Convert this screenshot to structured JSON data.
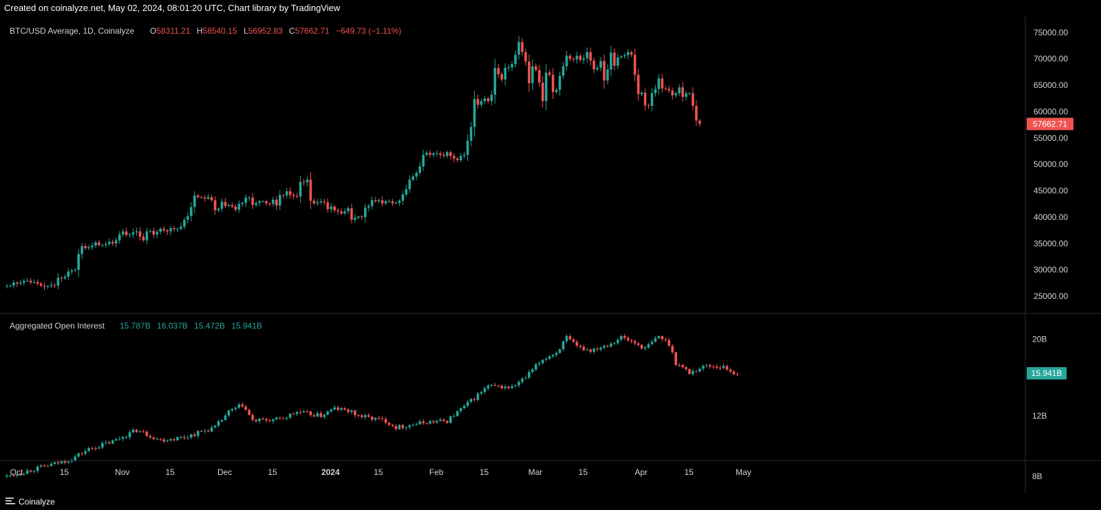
{
  "header": {
    "caption": "Created on coinalyze.net, May 02, 2024, 08:01:20 UTC, Chart library by TradingView"
  },
  "footer": {
    "brand": "Coinalyze",
    "logo_icon": "menu-lines-icon"
  },
  "colors": {
    "up": "#26a69a",
    "down": "#ef5350",
    "grid_separator": "#2a2e39",
    "axis_text": "#d1d4dc"
  },
  "chart_data": [
    {
      "type": "candlestick",
      "title": "BTC/USD Average, 1D, Coinalyze",
      "legend": {
        "open_label": "O",
        "open": "58311.21",
        "high_label": "H",
        "high": "58540.15",
        "low_label": "L",
        "low": "56952.83",
        "close_label": "C",
        "close": "57662.71",
        "change": "−649.73 (−1.11%)"
      },
      "last_value_label": "57662.71",
      "yticks": [
        "75000.00",
        "70000.00",
        "65000.00",
        "60000.00",
        "55000.00",
        "50000.00",
        "45000.00",
        "40000.00",
        "35000.00",
        "30000.00",
        "25000.00"
      ],
      "ylim": [
        22000,
        77000
      ],
      "x_start": "2023-10-01",
      "x_end": "2024-05-02",
      "closes": [
        26967,
        27000,
        27600,
        27400,
        27600,
        27900,
        27950,
        27600,
        27700,
        27400,
        27000,
        26800,
        26900,
        27100,
        27000,
        28500,
        28400,
        28700,
        29700,
        29900,
        30000,
        33000,
        34500,
        34100,
        34300,
        34600,
        35200,
        34700,
        34700,
        34900,
        35300,
        35000,
        35600,
        36700,
        37300,
        36600,
        36700,
        37100,
        37300,
        36300,
        35600,
        37300,
        37400,
        36700,
        37200,
        37800,
        37500,
        37300,
        37900,
        37700,
        37800,
        38200,
        39500,
        40200,
        41900,
        44100,
        43800,
        43700,
        43500,
        43800,
        43200,
        41300,
        41600,
        42900,
        42100,
        42300,
        42000,
        41400,
        42500,
        42700,
        43700,
        43700,
        42300,
        42700,
        43000,
        43000,
        42600,
        42500,
        43300,
        42200,
        44200,
        44100,
        44900,
        44200,
        44000,
        43900,
        46700,
        46600,
        47100,
        43100,
        42600,
        42800,
        43000,
        42800,
        41500,
        42000,
        41300,
        41100,
        40700,
        41100,
        41700,
        39500,
        39900,
        40100,
        40000,
        41800,
        42100,
        43200,
        43000,
        43200,
        42600,
        43000,
        43000,
        42600,
        42700,
        43100,
        44300,
        45300,
        47100,
        47700,
        48400,
        49600,
        51800,
        52200,
        51800,
        52100,
        52100,
        51800,
        51600,
        52300,
        51600,
        51100,
        50800,
        51600,
        51800,
        54500,
        57100,
        62400,
        61300,
        62000,
        62500,
        62000,
        63200,
        68300,
        67100,
        66100,
        68300,
        68400,
        69000,
        70800,
        73200,
        71300,
        69500,
        65400,
        68600,
        67900,
        65500,
        62000,
        67400,
        67000,
        63700,
        64100,
        66800,
        68600,
        70600,
        70000,
        69900,
        70600,
        69800,
        70100,
        71300,
        69700,
        68000,
        68300,
        69600,
        65900,
        68000,
        71200,
        68700,
        70300,
        70500,
        70700,
        71300,
        70800,
        67000,
        63300,
        63600,
        61200,
        61100,
        63500,
        64300,
        66300,
        64400,
        64300,
        64000,
        63100,
        63500,
        64600,
        62800,
        63500,
        63500,
        61100,
        58300,
        57663
      ]
    },
    {
      "type": "candlestick",
      "title": "Aggregated Open Interest",
      "legend": {
        "open": "15.787B",
        "high": "16.037B",
        "low": "15.472B",
        "close": "15.941B"
      },
      "last_value_label": "15.941B",
      "yticks": [
        "20B",
        "12B",
        "8B"
      ],
      "yvalues": [
        20,
        12,
        8
      ],
      "unit": "B",
      "x_start": "2023-10-01",
      "x_end": "2024-05-02",
      "xticks": [
        {
          "label": "Oct",
          "date": "2023-10-01",
          "bold": false
        },
        {
          "label": "15",
          "date": "2023-10-15",
          "bold": false
        },
        {
          "label": "Nov",
          "date": "2023-11-01",
          "bold": false
        },
        {
          "label": "15",
          "date": "2023-11-15",
          "bold": false
        },
        {
          "label": "Dec",
          "date": "2023-12-01",
          "bold": false
        },
        {
          "label": "15",
          "date": "2023-12-15",
          "bold": false
        },
        {
          "label": "2024",
          "date": "2024-01-01",
          "bold": true
        },
        {
          "label": "15",
          "date": "2024-01-15",
          "bold": false
        },
        {
          "label": "Feb",
          "date": "2024-02-01",
          "bold": false
        },
        {
          "label": "15",
          "date": "2024-02-15",
          "bold": false
        },
        {
          "label": "Mar",
          "date": "2024-03-01",
          "bold": false
        },
        {
          "label": "15",
          "date": "2024-03-15",
          "bold": false
        },
        {
          "label": "Apr",
          "date": "2024-04-01",
          "bold": false
        },
        {
          "label": "15",
          "date": "2024-04-15",
          "bold": false
        },
        {
          "label": "May",
          "date": "2024-05-01",
          "bold": false
        }
      ],
      "anchors": [
        [
          "2023-10-01",
          8.0
        ],
        [
          "2023-10-15",
          8.7
        ],
        [
          "2023-10-20",
          9.0
        ],
        [
          "2023-10-25",
          9.6
        ],
        [
          "2023-11-01",
          10.1
        ],
        [
          "2023-11-08",
          10.9
        ],
        [
          "2023-11-15",
          10.2
        ],
        [
          "2023-11-22",
          10.4
        ],
        [
          "2023-12-01",
          11.1
        ],
        [
          "2023-12-05",
          12.3
        ],
        [
          "2023-12-09",
          12.9
        ],
        [
          "2023-12-12",
          11.6
        ],
        [
          "2023-12-20",
          11.7
        ],
        [
          "2023-12-25",
          12.3
        ],
        [
          "2024-01-01",
          12.0
        ],
        [
          "2024-01-05",
          12.6
        ],
        [
          "2024-01-09",
          12.4
        ],
        [
          "2024-01-12",
          12.0
        ],
        [
          "2024-01-20",
          11.6
        ],
        [
          "2024-01-23",
          11.1
        ],
        [
          "2024-02-01",
          11.5
        ],
        [
          "2024-02-07",
          11.6
        ],
        [
          "2024-02-13",
          13.0
        ],
        [
          "2024-02-19",
          14.6
        ],
        [
          "2024-02-26",
          14.5
        ],
        [
          "2024-03-01",
          15.5
        ],
        [
          "2024-03-06",
          17.5
        ],
        [
          "2024-03-10",
          18.3
        ],
        [
          "2024-03-13",
          20.2
        ],
        [
          "2024-03-16",
          19.0
        ],
        [
          "2024-03-20",
          18.6
        ],
        [
          "2024-03-26",
          19.5
        ],
        [
          "2024-03-29",
          20.3
        ],
        [
          "2024-04-02",
          19.5
        ],
        [
          "2024-04-05",
          18.8
        ],
        [
          "2024-04-09",
          20.4
        ],
        [
          "2024-04-12",
          19.4
        ],
        [
          "2024-04-14",
          17.1
        ],
        [
          "2024-04-18",
          16.0
        ],
        [
          "2024-04-23",
          16.8
        ],
        [
          "2024-04-28",
          16.6
        ],
        [
          "2024-05-01",
          16.0
        ],
        [
          "2024-05-02",
          15.94
        ]
      ]
    }
  ]
}
